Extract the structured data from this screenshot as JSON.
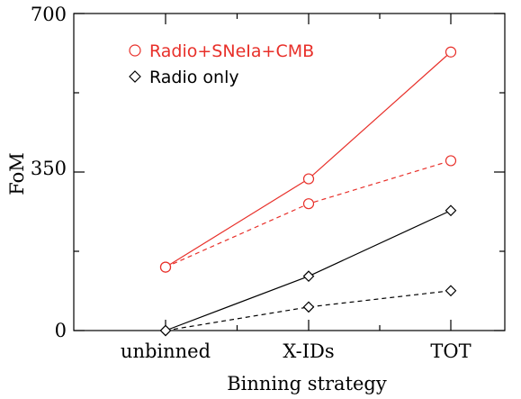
{
  "chart_data": {
    "type": "line",
    "xlabel": "Binning strategy",
    "ylabel": "FoM",
    "categories": [
      "unbinned",
      "X-IDs",
      "TOT"
    ],
    "yticks": [
      "0",
      "350",
      "700"
    ],
    "ylim": [
      0,
      700
    ],
    "grid": false,
    "legend_placement": "top-left",
    "legend": [
      {
        "label": "Radio+SNeIa+CMB",
        "marker": "circle",
        "color": "#e8302a"
      },
      {
        "label": "Radio only",
        "marker": "diamond",
        "color": "#000000"
      }
    ],
    "series": [
      {
        "name": "Radio+SNeIa+CMB",
        "marker": "circle",
        "color": "#e8302a",
        "dash": "solid",
        "values": [
          140,
          335,
          615
        ]
      },
      {
        "marker": "circle",
        "color": "#e8302a",
        "dash": "dashed",
        "values": [
          140,
          280,
          375
        ]
      },
      {
        "name": "Radio only",
        "marker": "diamond",
        "color": "#000000",
        "dash": "solid",
        "values": [
          0,
          120,
          265
        ]
      },
      {
        "marker": "diamond",
        "color": "#000000",
        "dash": "dashed",
        "values": [
          0,
          52,
          88
        ]
      }
    ]
  }
}
